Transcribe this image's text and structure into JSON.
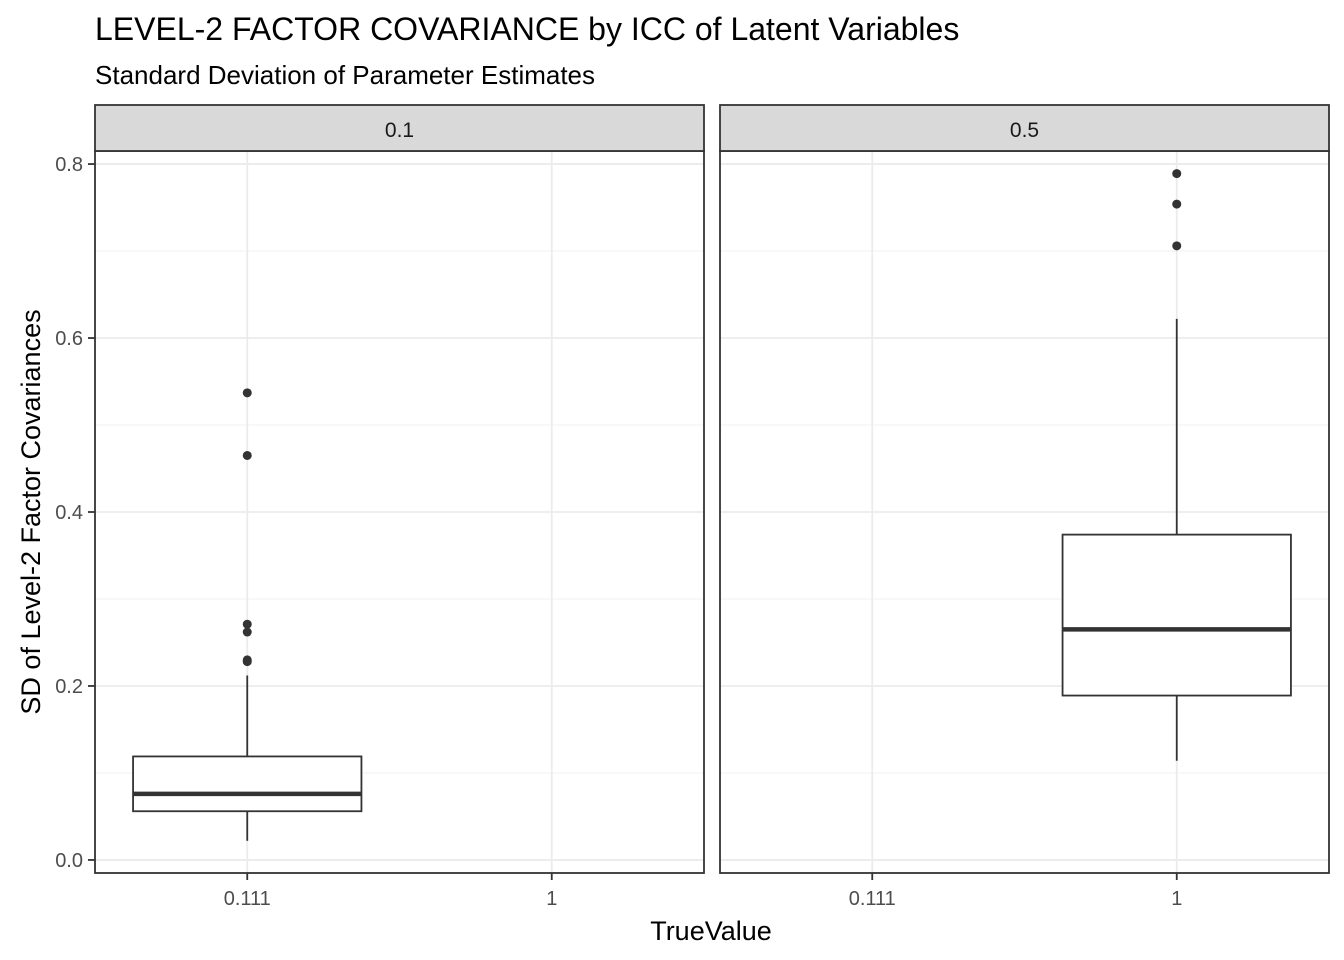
{
  "chart_data": {
    "type": "boxplot",
    "title": "LEVEL-2 FACTOR COVARIANCE by ICC of Latent Variables",
    "subtitle": "Standard Deviation of Parameter Estimates",
    "xlabel": "TrueValue",
    "ylabel": "SD of Level-2 Factor Covariances",
    "categories": [
      "0.111",
      "1"
    ],
    "ylim": [
      -0.015,
      0.815
    ],
    "yticks": [
      0.0,
      0.2,
      0.4,
      0.6,
      0.8
    ],
    "ytick_labels": [
      "0.0",
      "0.2",
      "0.4",
      "0.6",
      "0.8"
    ],
    "grid": true,
    "facets": [
      {
        "label": "0.1",
        "boxes": [
          {
            "category": "0.111",
            "whisker_low": 0.022,
            "q1": 0.056,
            "median": 0.076,
            "q3": 0.119,
            "whisker_high": 0.212,
            "outliers": [
              0.228,
              0.23,
              0.262,
              0.271,
              0.465,
              0.537
            ]
          }
        ]
      },
      {
        "label": "0.5",
        "boxes": [
          {
            "category": "1",
            "whisker_low": 0.114,
            "q1": 0.189,
            "median": 0.265,
            "q3": 0.374,
            "whisker_high": 0.622,
            "outliers": [
              0.706,
              0.754,
              0.789
            ]
          }
        ]
      }
    ]
  }
}
